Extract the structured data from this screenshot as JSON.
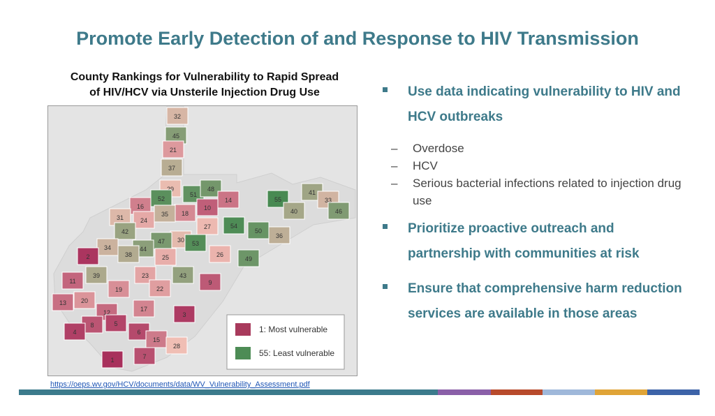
{
  "slide": {
    "title": "Promote Early Detection of and Response to HIV Transmission"
  },
  "map": {
    "title_line1": "County Rankings for Vulnerability to Rapid Spread",
    "title_line2": "of HIV/HCV via Unsterile Injection Drug Use",
    "legend": {
      "most": "1: Most vulnerable",
      "least": "55: Least vulnerable",
      "most_color": "#a83a5c",
      "least_color": "#4d8c55"
    },
    "source_url": "https://oeps.wv.gov/HCV/documents/data/WV_Vulnerability_Assessment.pdf",
    "county_ranks": [
      32,
      45,
      21,
      37,
      29,
      51,
      48,
      52,
      16,
      18,
      10,
      14,
      55,
      41,
      33,
      46,
      35,
      24,
      31,
      42,
      27,
      54,
      40,
      50,
      30,
      53,
      36,
      47,
      44,
      34,
      2,
      38,
      26,
      25,
      39,
      23,
      49,
      43,
      22,
      19,
      11,
      20,
      13,
      12,
      17,
      9,
      8,
      5,
      6,
      15,
      4,
      7,
      3,
      1,
      28
    ]
  },
  "bullets": [
    {
      "text": "Use data indicating vulnerability to HIV and HCV outbreaks",
      "subs": [
        "Overdose",
        "HCV",
        "Serious bacterial infections related to injection drug use"
      ]
    },
    {
      "text": "Prioritize proactive outreach and partnership with communities at risk",
      "subs": []
    },
    {
      "text": "Ensure that comprehensive harm reduction services are available in those areas",
      "subs": []
    }
  ],
  "footer_colors": [
    "#3c7b8c",
    "#8a5fa8",
    "#b84a2c",
    "#9fb8da",
    "#e0a437",
    "#3d63a8"
  ]
}
